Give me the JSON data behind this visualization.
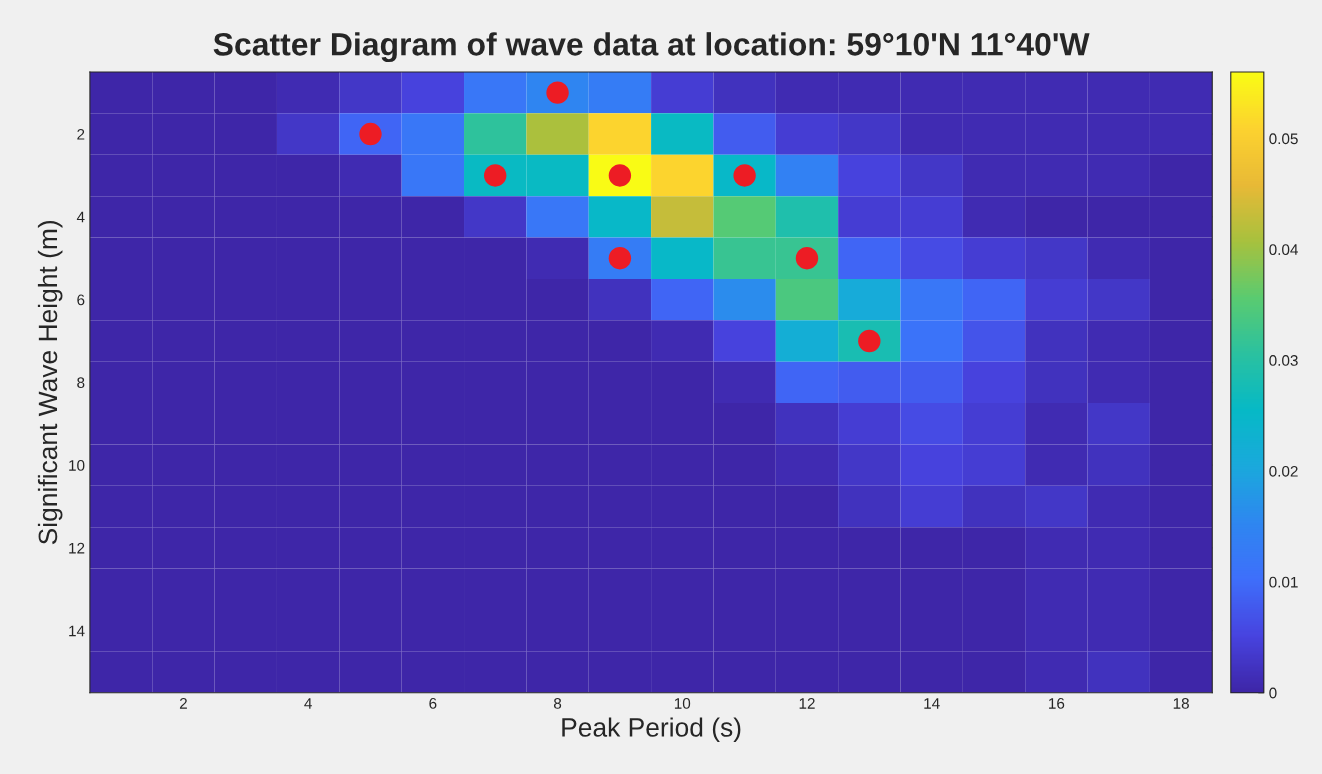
{
  "chart_data": {
    "type": "heatmap",
    "title": "Scatter Diagram of wave data at location: 59°10'N 11°40'W",
    "xlabel": "Peak Period (s)",
    "ylabel": "Significant Wave Height (m)",
    "x": [
      1,
      2,
      3,
      4,
      5,
      6,
      7,
      8,
      9,
      10,
      11,
      12,
      13,
      14,
      15,
      16,
      17,
      18
    ],
    "y": [
      1,
      2,
      3,
      4,
      5,
      6,
      7,
      8,
      9,
      10,
      11,
      12,
      13,
      14,
      15
    ],
    "xlim": [
      0.5,
      18.5
    ],
    "xticks": [
      2,
      4,
      6,
      8,
      10,
      12,
      14,
      16,
      18
    ],
    "ylim": [
      15.5,
      0.5
    ],
    "yticks": [
      2,
      4,
      6,
      8,
      10,
      12,
      14
    ],
    "clim": [
      0,
      0.056
    ],
    "cticks": [
      0,
      0.01,
      0.02,
      0.03,
      0.04,
      0.05
    ],
    "cells": [
      [
        0,
        0,
        0,
        0.001,
        0.003,
        0.005,
        0.012,
        0.015,
        0.013,
        0.004,
        0.002,
        0.001,
        0.001,
        0.001,
        0.001,
        0.001,
        0.001,
        0.001
      ],
      [
        0,
        0,
        0,
        0.003,
        0.009,
        0.012,
        0.031,
        0.041,
        0.051,
        0.026,
        0.008,
        0.004,
        0.003,
        0.001,
        0.001,
        0.001,
        0.001,
        0.001
      ],
      [
        0,
        0,
        0,
        0,
        0.001,
        0.012,
        0.026,
        0.026,
        0.056,
        0.051,
        0.025,
        0.014,
        0.005,
        0.003,
        0.001,
        0.001,
        0.001,
        0
      ],
      [
        0,
        0,
        0,
        0,
        0,
        0,
        0.003,
        0.012,
        0.025,
        0.043,
        0.035,
        0.029,
        0.004,
        0.004,
        0.001,
        0,
        0,
        0
      ],
      [
        0,
        0,
        0,
        0,
        0,
        0,
        0,
        0.001,
        0.013,
        0.025,
        0.032,
        0.032,
        0.009,
        0.006,
        0.004,
        0.003,
        0.001,
        0
      ],
      [
        0,
        0,
        0,
        0,
        0,
        0,
        0,
        0,
        0.002,
        0.009,
        0.016,
        0.034,
        0.021,
        0.012,
        0.009,
        0.004,
        0.003,
        0
      ],
      [
        0,
        0,
        0,
        0,
        0,
        0,
        0,
        0,
        0,
        0.001,
        0.005,
        0.022,
        0.028,
        0.011,
        0.007,
        0.002,
        0.001,
        0
      ],
      [
        0,
        0,
        0,
        0,
        0,
        0,
        0,
        0,
        0,
        0,
        0.001,
        0.009,
        0.008,
        0.008,
        0.005,
        0.002,
        0.001,
        0
      ],
      [
        0,
        0,
        0,
        0,
        0,
        0,
        0,
        0,
        0,
        0,
        0,
        0.002,
        0.004,
        0.006,
        0.004,
        0.001,
        0.003,
        0
      ],
      [
        0,
        0,
        0,
        0,
        0,
        0,
        0,
        0,
        0,
        0,
        0,
        0.001,
        0.003,
        0.005,
        0.004,
        0.001,
        0.002,
        0
      ],
      [
        0,
        0,
        0,
        0,
        0,
        0,
        0,
        0,
        0,
        0,
        0,
        0,
        0.002,
        0.004,
        0.002,
        0.003,
        0.001,
        0
      ],
      [
        0,
        0,
        0,
        0,
        0,
        0,
        0,
        0,
        0,
        0,
        0,
        0,
        0,
        0,
        0,
        0.001,
        0.001,
        0
      ],
      [
        0,
        0,
        0,
        0,
        0,
        0,
        0,
        0,
        0,
        0,
        0,
        0,
        0,
        0,
        0,
        0.001,
        0.001,
        0
      ],
      [
        0,
        0,
        0,
        0,
        0,
        0,
        0,
        0,
        0,
        0,
        0,
        0,
        0,
        0,
        0,
        0.001,
        0.001,
        0
      ],
      [
        0,
        0,
        0,
        0,
        0,
        0,
        0,
        0,
        0,
        0,
        0,
        0,
        0,
        0,
        0,
        0.001,
        0.002,
        0
      ]
    ],
    "series": [
      {
        "type": "scatter",
        "color": "#ed1c24",
        "x": [
          8,
          5,
          7,
          9,
          11,
          9,
          12,
          13
        ],
        "values": [
          1,
          2,
          3,
          3,
          3,
          5,
          5,
          7
        ]
      }
    ],
    "marker": "circle",
    "grid": false,
    "legend": false
  }
}
